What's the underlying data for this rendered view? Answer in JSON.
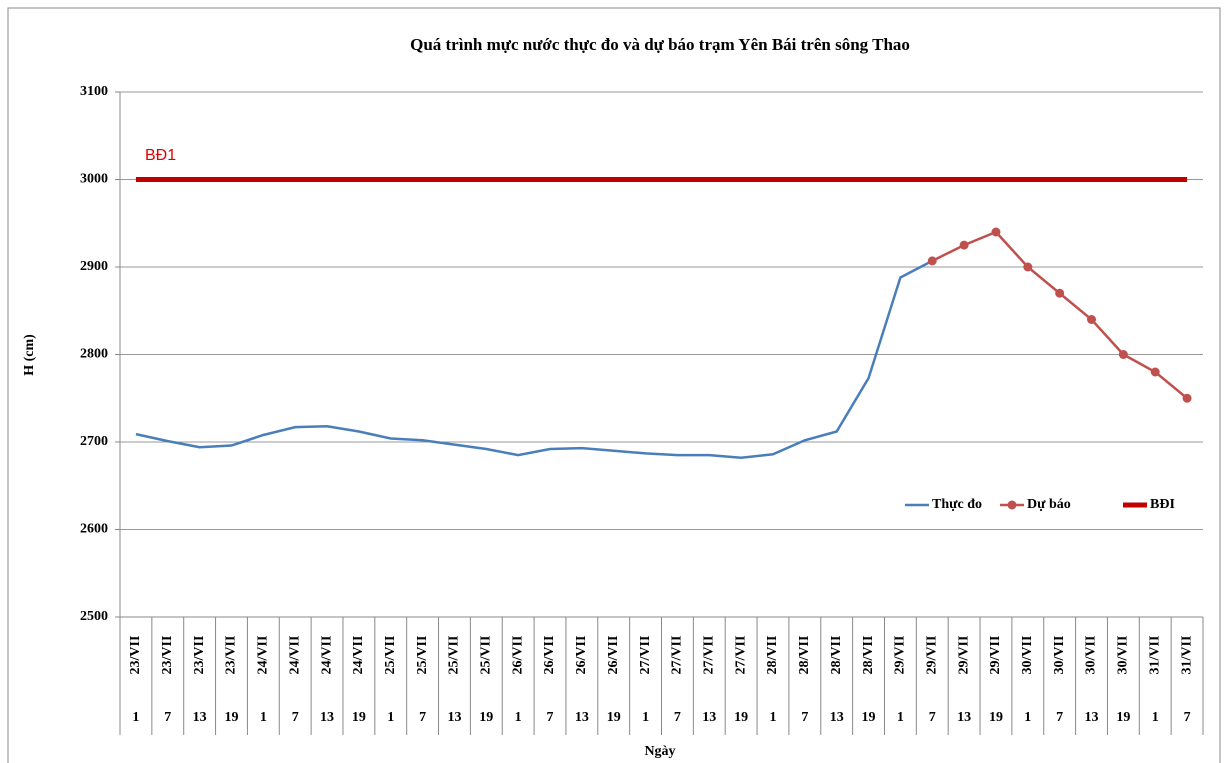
{
  "chart_data": {
    "type": "line",
    "title": "Quá trình mực nước thực đo và dự báo trạm Yên Bái trên sông Thao",
    "y_label": "H (cm)",
    "x_label": "Ngày",
    "annotation": "BĐ1",
    "categories": [
      "23/VII",
      "23/VII",
      "23/VII",
      "23/VII",
      "24/VII",
      "24/VII",
      "24/VII",
      "24/VII",
      "25/VII",
      "25/VII",
      "25/VII",
      "25/VII",
      "26/VII",
      "26/VII",
      "26/VII",
      "26/VII",
      "27/VII",
      "27/VII",
      "27/VII",
      "27/VII",
      "28/VII",
      "28/VII",
      "28/VII",
      "28/VII",
      "29/VII",
      "29/VII",
      "29/VII",
      "29/VII",
      "30/VII",
      "30/VII",
      "30/VII",
      "30/VII",
      "31/VII",
      "31/VII"
    ],
    "hours": [
      "1",
      "7",
      "13",
      "19",
      "1",
      "7",
      "13",
      "19",
      "1",
      "7",
      "13",
      "19",
      "1",
      "7",
      "13",
      "19",
      "1",
      "7",
      "13",
      "19",
      "1",
      "7",
      "13",
      "19",
      "1",
      "7",
      "13",
      "19",
      "1",
      "7",
      "13",
      "19",
      "1",
      "7"
    ],
    "series": [
      {
        "name": "Thực đo",
        "color": "#4a7ebb",
        "markers": false,
        "values": [
          2709,
          2701,
          2694,
          2696,
          2708,
          2717,
          2718,
          2712,
          2704,
          2702,
          2697,
          2692,
          2685,
          2692,
          2693,
          2690,
          2687,
          2685,
          2685,
          2682,
          2686,
          2702,
          2712,
          2773,
          2888,
          2907,
          null,
          null,
          null,
          null,
          null,
          null,
          null,
          null
        ]
      },
      {
        "name": "Dự báo",
        "color": "#c0504d",
        "markers": true,
        "values": [
          null,
          null,
          null,
          null,
          null,
          null,
          null,
          null,
          null,
          null,
          null,
          null,
          null,
          null,
          null,
          null,
          null,
          null,
          null,
          null,
          null,
          null,
          null,
          null,
          null,
          2907,
          2925,
          2940,
          2900,
          2870,
          2840,
          2800,
          2780,
          2750
        ]
      },
      {
        "name": "BĐI",
        "color": "#c00000",
        "markers": false,
        "width": 5,
        "values": [
          3000,
          3000,
          3000,
          3000,
          3000,
          3000,
          3000,
          3000,
          3000,
          3000,
          3000,
          3000,
          3000,
          3000,
          3000,
          3000,
          3000,
          3000,
          3000,
          3000,
          3000,
          3000,
          3000,
          3000,
          3000,
          3000,
          3000,
          3000,
          3000,
          3000,
          3000,
          3000,
          3000,
          3000
        ]
      }
    ],
    "ylim": [
      2500,
      3100
    ],
    "yticks": [
      2500,
      2600,
      2700,
      2800,
      2900,
      3000,
      3100
    ],
    "grid": true,
    "legend": "right"
  }
}
